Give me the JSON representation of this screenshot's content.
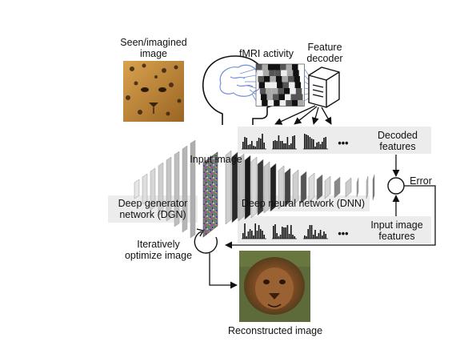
{
  "labels": {
    "seen_image": "Seen/imagined\nimage",
    "fmri": "fMRI activity",
    "feature_decoder": "Feature\ndecoder",
    "decoded_features": "Decoded\nfeatures",
    "input_image": "Input image",
    "error": "Error",
    "dgn": "Deep generator\nnetwork (DGN)",
    "dnn": "Deep neural network (DNN)",
    "input_image_features": "Input image\nfeatures",
    "iterative": "Iteratively\noptimize image",
    "reconstructed": "Reconstructed image",
    "ellipsis_top": "•••",
    "ellipsis_bottom": "•••"
  },
  "colors": {
    "panel": "#ececec",
    "fmri_lines": "#6f8fd6",
    "arrow": "#111111",
    "leopard": "#c78a3c",
    "lion": "#8a5a2e"
  },
  "icons": {
    "head": "head-silhouette-icon",
    "computer": "server-tower-icon"
  }
}
